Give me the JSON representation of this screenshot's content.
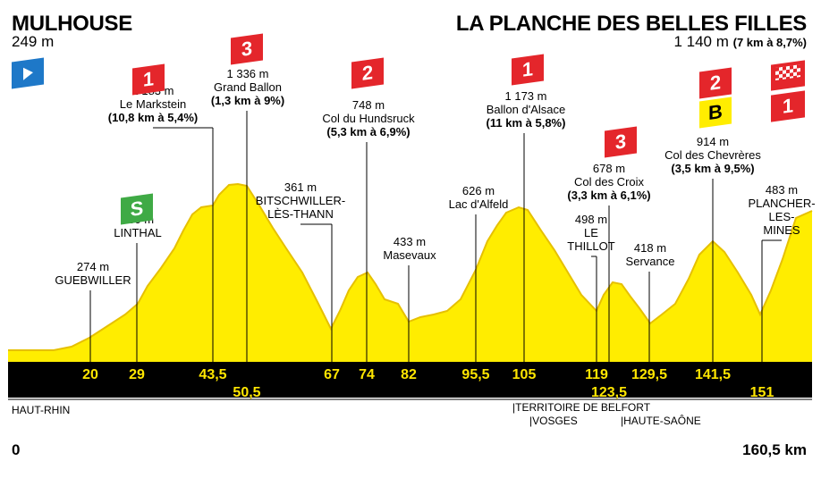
{
  "start": {
    "name": "MULHOUSE",
    "alt": "249 m"
  },
  "finish": {
    "name": "LA PLANCHE DES BELLES FILLES",
    "alt": "1 140 m",
    "climb": "(7 km à 8,7%)"
  },
  "colors": {
    "profile": "#ffed00",
    "profile_dark": "#e8c400",
    "band": "#000000",
    "cat": "#e4262b",
    "sprint": "#3faa45",
    "start": "#1e78c8",
    "bonus": "#ffed00"
  },
  "points": [
    {
      "km": 20,
      "lines": [
        "274 m",
        "GUEBWILLER"
      ]
    },
    {
      "km": 29,
      "lines": [
        "430 m",
        "LINTHAL"
      ],
      "sprint": "S"
    },
    {
      "km": 43.5,
      "lines": [
        "1 183 m",
        "Le Markstein"
      ],
      "bold": "(10,8 km à 5,4%)",
      "cat": "1"
    },
    {
      "km": 50.5,
      "lines": [
        "1 336 m",
        "Grand Ballon"
      ],
      "bold": "(1,3 km à 9%)",
      "cat": "3"
    },
    {
      "km": 67,
      "lines": [
        "361 m",
        "BITSCHWILLER-",
        "LÈS-THANN"
      ]
    },
    {
      "km": 74,
      "lines": [
        "748 m",
        "Col du Hundsruck"
      ],
      "bold": "(5,3 km à 6,9%)",
      "cat": "2"
    },
    {
      "km": 82,
      "lines": [
        "433 m",
        "Masevaux"
      ]
    },
    {
      "km": 95.5,
      "lines": [
        "626 m",
        "Lac d'Alfeld"
      ]
    },
    {
      "km": 105,
      "lines": [
        "1 173 m",
        "Ballon d'Alsace"
      ],
      "bold": "(11 km à 5,8%)",
      "cat": "1"
    },
    {
      "km": 119,
      "lines": [
        "498 m",
        "LE",
        "THILLOT"
      ]
    },
    {
      "km": 123.5,
      "lines": [
        "678 m",
        "Col des Croix"
      ],
      "bold": "(3,3 km à 6,1%)",
      "cat": "3"
    },
    {
      "km": 129.5,
      "lines": [
        "418 m",
        "Servance"
      ]
    },
    {
      "km": 141.5,
      "lines": [
        "914 m",
        "Col des Chevrères"
      ],
      "bold": "(3,5 km à 9,5%)",
      "cat": "2",
      "bonus": "B"
    },
    {
      "km": 151,
      "lines": [
        "483 m",
        "PLANCHER-",
        "LES-",
        "MINES"
      ]
    }
  ],
  "km_labels": [
    "20",
    "29",
    "43,5",
    "50,5",
    "67",
    "74",
    "82",
    "95,5",
    "105",
    "119",
    "123,5",
    "129,5",
    "141,5",
    "151"
  ],
  "regions": [
    "HAUT-RHIN",
    "|TERRITOIRE DE BELFORT",
    "|VOSGES",
    "|HAUTE-SAÔNE"
  ],
  "finish_cat": "1",
  "distance_start": "0",
  "distance_total": "160,5 km"
}
